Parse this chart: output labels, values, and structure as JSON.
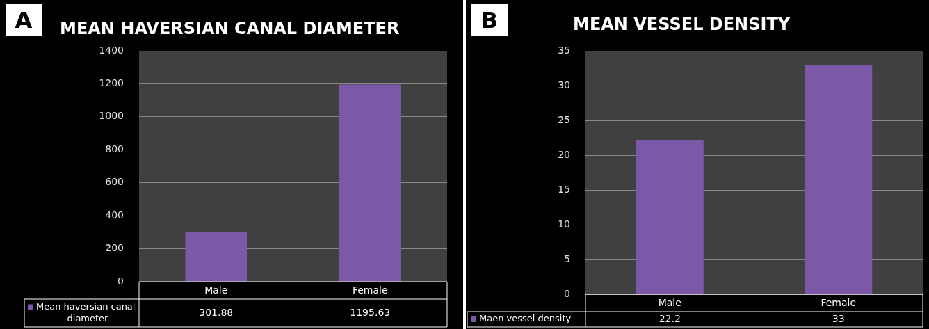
{
  "chart_data": [
    {
      "type": "bar",
      "title": "MEAN HAVERSIAN CANAL DIAMETER",
      "annotations": [
        "A"
      ],
      "categories": [
        "Male",
        "Female"
      ],
      "series": [
        {
          "name": "Mean haversian canal diameter",
          "color": "#7c58a8",
          "values": [
            301.88,
            1195.63
          ]
        }
      ],
      "ylim": [
        0,
        1400
      ],
      "yticks": [
        0,
        200,
        400,
        600,
        800,
        1000,
        1200,
        1400
      ],
      "grid": "y",
      "legend": "bottom left",
      "data_labels": true
    },
    {
      "type": "bar",
      "title": "MEAN VESSEL DENSITY",
      "annotations": [
        "B"
      ],
      "categories": [
        "Male",
        "Female"
      ],
      "series": [
        {
          "name": "Maen vessel density",
          "color": "#7c58a8",
          "values": [
            22.2,
            33
          ]
        }
      ],
      "ylim": [
        0,
        35
      ],
      "yticks": [
        0,
        5,
        10,
        15,
        20,
        25,
        30,
        35
      ],
      "grid": "y",
      "legend": "bottom left",
      "data_labels": true
    }
  ]
}
